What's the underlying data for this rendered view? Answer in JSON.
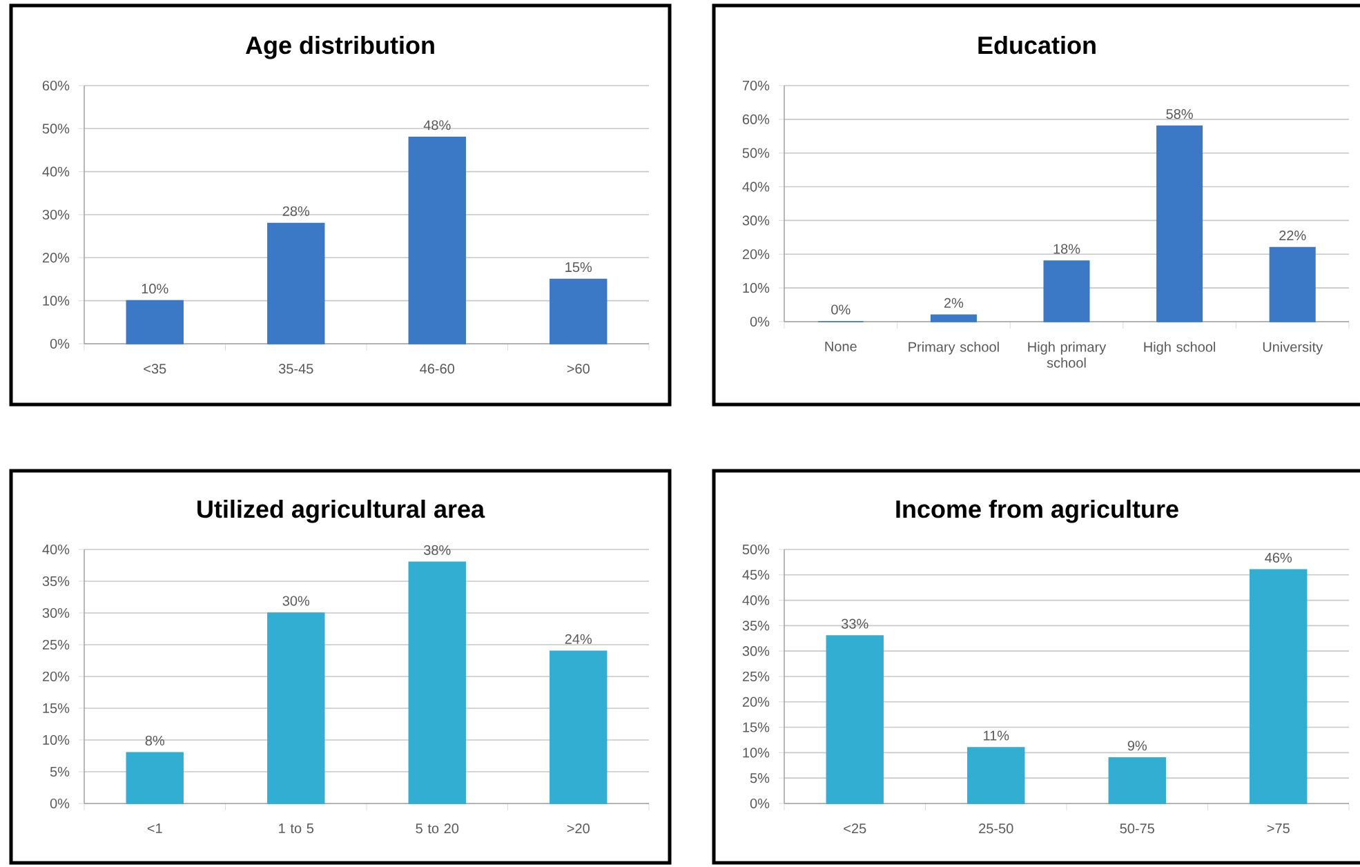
{
  "chart_data": [
    {
      "type": "bar",
      "title": "Age distribution",
      "categories": [
        "<35",
        "35-45",
        "46-60",
        ">60"
      ],
      "values": [
        10,
        28,
        48,
        15
      ],
      "value_labels": [
        "10%",
        "28%",
        "48%",
        "15%"
      ],
      "color": "#3b78c6",
      "ylim": [
        0,
        60
      ],
      "yticks": [
        {
          "value": 0,
          "label": "0%"
        },
        {
          "value": 10,
          "label": "10%"
        },
        {
          "value": 20,
          "label": "20%"
        },
        {
          "value": 30,
          "label": "30%"
        },
        {
          "value": 40,
          "label": "40%"
        },
        {
          "value": 50,
          "label": "50%"
        },
        {
          "value": 60,
          "label": "60%"
        }
      ],
      "grid": "y"
    },
    {
      "type": "bar",
      "title": "Education",
      "categories": [
        "None",
        "Primary school",
        "High primary school",
        "High school",
        "University"
      ],
      "values": [
        0,
        2,
        18,
        58,
        22
      ],
      "value_labels": [
        "0%",
        "2%",
        "18%",
        "58%",
        "22%"
      ],
      "color": "#3b78c6",
      "ylim": [
        0,
        70
      ],
      "yticks": [
        {
          "value": 0,
          "label": "0%"
        },
        {
          "value": 10,
          "label": "10%"
        },
        {
          "value": 20,
          "label": "20%"
        },
        {
          "value": 30,
          "label": "30%"
        },
        {
          "value": 40,
          "label": "40%"
        },
        {
          "value": 50,
          "label": "50%"
        },
        {
          "value": 60,
          "label": "60%"
        },
        {
          "value": 70,
          "label": "70%"
        }
      ],
      "grid": "y"
    },
    {
      "type": "bar",
      "title": "Utilized agricultural area",
      "categories": [
        "<1",
        "1 to 5",
        "5 to 20",
        ">20"
      ],
      "values": [
        8,
        30,
        38,
        24
      ],
      "value_labels": [
        "8%",
        "30%",
        "38%",
        "24%"
      ],
      "color": "#33aed3",
      "ylim": [
        0,
        40
      ],
      "yticks": [
        {
          "value": 0,
          "label": "0%"
        },
        {
          "value": 5,
          "label": "5%"
        },
        {
          "value": 10,
          "label": "10%"
        },
        {
          "value": 15,
          "label": "15%"
        },
        {
          "value": 20,
          "label": "20%"
        },
        {
          "value": 25,
          "label": "25%"
        },
        {
          "value": 30,
          "label": "30%"
        },
        {
          "value": 35,
          "label": "35%"
        },
        {
          "value": 40,
          "label": "40%"
        }
      ],
      "grid": "y"
    },
    {
      "type": "bar",
      "title": "Income from agriculture",
      "categories": [
        "<25",
        "25-50",
        "50-75",
        ">75"
      ],
      "values": [
        33,
        11,
        9,
        46
      ],
      "value_labels": [
        "33%",
        "11%",
        "9%",
        "46%"
      ],
      "color": "#33aed3",
      "ylim": [
        0,
        50
      ],
      "yticks": [
        {
          "value": 0,
          "label": "0%"
        },
        {
          "value": 5,
          "label": "5%"
        },
        {
          "value": 10,
          "label": "10%"
        },
        {
          "value": 15,
          "label": "15%"
        },
        {
          "value": 20,
          "label": "20%"
        },
        {
          "value": 25,
          "label": "25%"
        },
        {
          "value": 30,
          "label": "30%"
        },
        {
          "value": 35,
          "label": "35%"
        },
        {
          "value": 40,
          "label": "40%"
        },
        {
          "value": 45,
          "label": "45%"
        },
        {
          "value": 50,
          "label": "50%"
        }
      ],
      "grid": "y"
    }
  ]
}
